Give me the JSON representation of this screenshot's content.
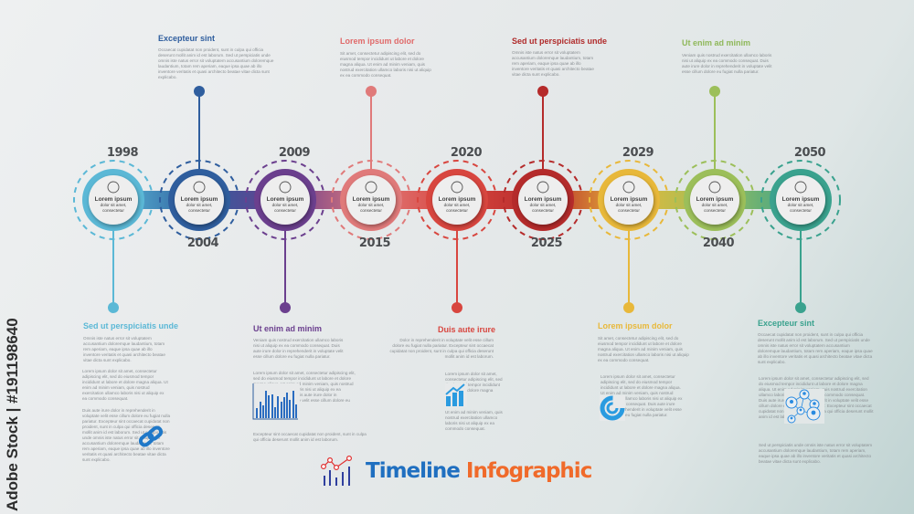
{
  "watermark": "Adobe Stock | #191198640",
  "title": {
    "part1": "Timeline",
    "part2": "Infographic",
    "color1": "#1f6fc0",
    "color2": "#f06a2a"
  },
  "nodes": [
    {
      "year": "1998",
      "color": "#5bb8d6",
      "icon": "map-pin-icon",
      "label": "Lorem ipsum",
      "sub1": "dolor sit amet,",
      "sub2": "consectetur"
    },
    {
      "year": "2004",
      "color": "#2f5e9e",
      "icon": "magnifier-icon",
      "label": "Lorem ipsum",
      "sub1": "dolor sit amet,",
      "sub2": "consectetur"
    },
    {
      "year": "2009",
      "color": "#6b3f8e",
      "icon": "globe-icon",
      "label": "Lorem ipsum",
      "sub1": "dolor sit amet,",
      "sub2": "consectetur"
    },
    {
      "year": "2015",
      "color": "#e07a7a",
      "icon": "chat-bubbles-icon",
      "label": "Lorem ipsum",
      "sub1": "dolor sit amet,",
      "sub2": "consectetur"
    },
    {
      "year": "2020",
      "color": "#d8463f",
      "icon": "chip-icon",
      "label": "Lorem ipsum",
      "sub1": "dolor sit amet,",
      "sub2": "consectetur"
    },
    {
      "year": "2025",
      "color": "#b52b2b",
      "icon": "cloud-upload-icon",
      "label": "Lorem ipsum",
      "sub1": "dolor sit amet,",
      "sub2": "consectetur"
    },
    {
      "year": "2029",
      "color": "#e8b83a",
      "icon": "airplane-icon",
      "label": "Lorem ipsum",
      "sub1": "dolor sit amet,",
      "sub2": "consectetur"
    },
    {
      "year": "2040",
      "color": "#9cbf5a",
      "icon": "support-agent-icon",
      "label": "Lorem ipsum",
      "sub1": "dolor sit amet,",
      "sub2": "consectetur"
    },
    {
      "year": "2050",
      "color": "#3aa28e",
      "icon": "24h-service-icon",
      "label": "Lorem ipsum",
      "sub1": "dolor sit amet,",
      "sub2": "consectetur"
    }
  ],
  "blocks": {
    "b1": {
      "heading": "Excepteur sint",
      "text": "Occaecat cupidatat non proident, sunt in culpa qui officia deserunt mollit anim id est laborum. Sed ut perspiciatis unde omnis iste natus error sit voluptatem accusantium doloremque laudantium, totam rem aperiam, eaque ipsa quae ab illo inventore veritatis et quasi architecto beatae vitae dicta sunt explicabo."
    },
    "b3": {
      "heading": "Lorem ipsum dolor",
      "text": "Sit amet, consectetur adipiscing elit, sed do eiusmod tempor incididunt ut labore et dolore magna aliqua. Ut enim ad minim veniam, quis nostrud exercitation ullamco laboris nisi ut aliquip ex ea commodo consequat."
    },
    "b5": {
      "heading": "Sed ut perspiciatis unde",
      "text": "Omnis iste natus error sit voluptatem accusantium doloremque laudantium, totam rem aperiam, eaque ipsa quae ab illo inventore veritatis et quasi architecto beatae vitae dicta sunt explicabo."
    },
    "b7": {
      "heading": "Ut enim ad minim",
      "text": "Veniam quis nostrud exercitation ullamco laboris nisi ut aliquip ex ea commodo consequat. Duis aute irure dolor in reprehenderit in voluptate velit esse cillum dolore eu fugiat nulla pariatur."
    },
    "b0": {
      "heading": "Sed ut perspiciatis unde",
      "text": "Omnis iste natus error sit voluptatem accusantium doloremque laudantium, totam rem aperiam, eaque ipsa quae ab illo inventore veritatis et quasi architecto beatae vitae dicta sunt explicabo.",
      "text2": "Lorem ipsum dolor sit amet, consectetur adipiscing elit, sed do eiusmod tempor incididunt ut labore et dolore magna aliqua. Ut enim ad minim veniam, quis nostrud exercitation ullamco laboris nisi ut aliquip ex ea commodo consequat.",
      "text3": "Duis aute irure dolor in reprehenderit in voluptate velit esse cillum dolore eu fugiat nulla pariatur. Excepteur sint occaecat cupidatat non proident, sunt in culpa qui officia deserunt mollit anim id est laborum. Sed ut perspiciatis unde omnis iste natus error sit voluptatem accusantium doloremque laudantium, totam rem aperiam, eaque ipsa quae ab illo inventore veritatis et quasi architecto beatae vitae dicta sunt explicabo."
    },
    "b2": {
      "heading": "Ut enim ad minim",
      "text": "Veniam quis nostrud exercitation ullamco laboris nisi ut aliquip ex ea commodo consequat. Duis aute irure dolor in reprehenderit in voluptate velit esse cillum dolore eu fugiat nulla pariatur.",
      "text2": "Lorem ipsum dolor sit amet, consectetur adipiscing elit, sed do eiusmod tempor incididunt ut labore et dolore magna aliqua. Ut enim ad minim veniam, quis nostrud exercitation ullamco laboris nisi ut aliquip ex ea commodo consequat. Duis aute irure dolor in reprehenderit in voluptate velit esse cillum dolore eu fugiat nulla pariatur.",
      "text3": "Excepteur sint occaecat cupidatat non proident, sunt in culpa qui officia deserunt mollit anim id est laborum."
    },
    "b4": {
      "heading": "Duis aute irure",
      "text": "Dolor in reprehenderit in voluptate velit esse cillum dolore eu fugiat nulla pariatur. Excepteur sint occaecat cupidatat non proident, sunt in culpa qui officia deserunt mollit anim id est laborum.",
      "text2": "Lorem ipsum dolor sit amet, consectetur adipiscing elit, sed do eiusmod tempor incididunt ut labore et dolore magna aliqua.",
      "text3": "Ut enim ad minim veniam, quis nostrud exercitation ullamco laboris nisi ut aliquip ex ea commodo consequat."
    },
    "b6": {
      "heading": "Lorem ipsum dolor",
      "text": "Sit amet, consectetur adipiscing elit, sed do eiusmod tempor incididunt ut labore et dolore magna aliqua. Ut enim ad minim veniam, quis nostrud exercitation ullamco laboris nisi ut aliquip ex ea commodo consequat.",
      "text2": "Lorem ipsum dolor sit amet, consectetur adipiscing elit, sed do eiusmod tempor incididunt ut labore et dolore magna aliqua. Ut enim ad minim veniam, quis nostrud exercitation ullamco laboris nisi ut aliquip ex ea commodo consequat. Duis aute irure dolor in reprehenderit in voluptate velit esse cillum dolore eu fugiat nulla pariatur."
    },
    "b8": {
      "heading": "Excepteur sint",
      "text": "Occaecat cupidatat non proident, sunt in culpa qui officia deserunt mollit anim id est laborum. Sed ut perspiciatis unde omnis iste natus error sit voluptatem accusantium doloremque laudantium, totam rem aperiam, eaque ipsa quae ab illo inventore veritatis et quasi architecto beatae vitae dicta sunt explicabo.",
      "text2": "Lorem ipsum dolor sit amet, consectetur adipiscing elit, sed do eiusmod tempor incididunt ut labore et dolore magna aliqua. Ut enim ad minim veniam, quis nostrud exercitation ullamco laboris nisi ut aliquip ex ea commodo consequat. Duis aute irure dolor in reprehenderit in voluptate velit esse cillum dolore eu fugiat nulla pariatur. Excepteur sint occaecat cupidatat non proident, sunt in culpa qui officia deserunt mollit anim id est laborum.",
      "text3": "Sed ut perspiciatis unde omnis iste natus error sit voluptatem accusantium doloremque laudantium, totam rem aperiam, eaque ipsa quae ab illo inventore veritatis et quasi architecto beatae vitae dicta sunt explicabo."
    }
  }
}
